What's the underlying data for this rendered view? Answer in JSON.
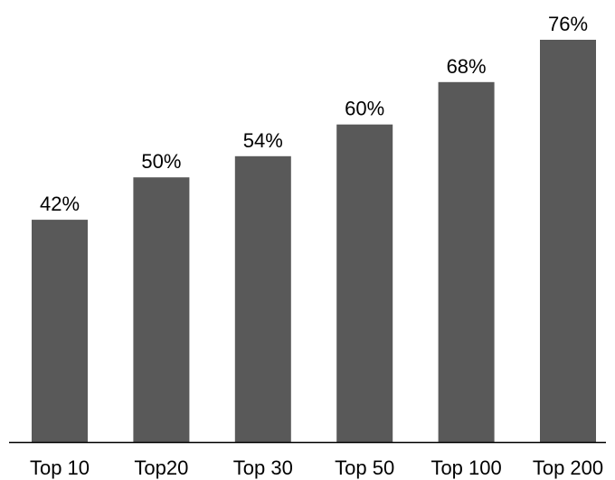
{
  "chart_data": {
    "type": "bar",
    "categories": [
      "Top 10",
      "Top20",
      "Top 30",
      "Top 50",
      "Top 100",
      "Top 200"
    ],
    "values": [
      42,
      50,
      54,
      60,
      68,
      76
    ],
    "data_labels": [
      "42%",
      "50%",
      "54%",
      "60%",
      "68%",
      "76%"
    ],
    "title": "",
    "xlabel": "",
    "ylabel": "",
    "ylim": [
      0,
      76
    ],
    "grid": false,
    "legend": "none",
    "bar_color": "#595959",
    "axis_color": "#000000"
  }
}
